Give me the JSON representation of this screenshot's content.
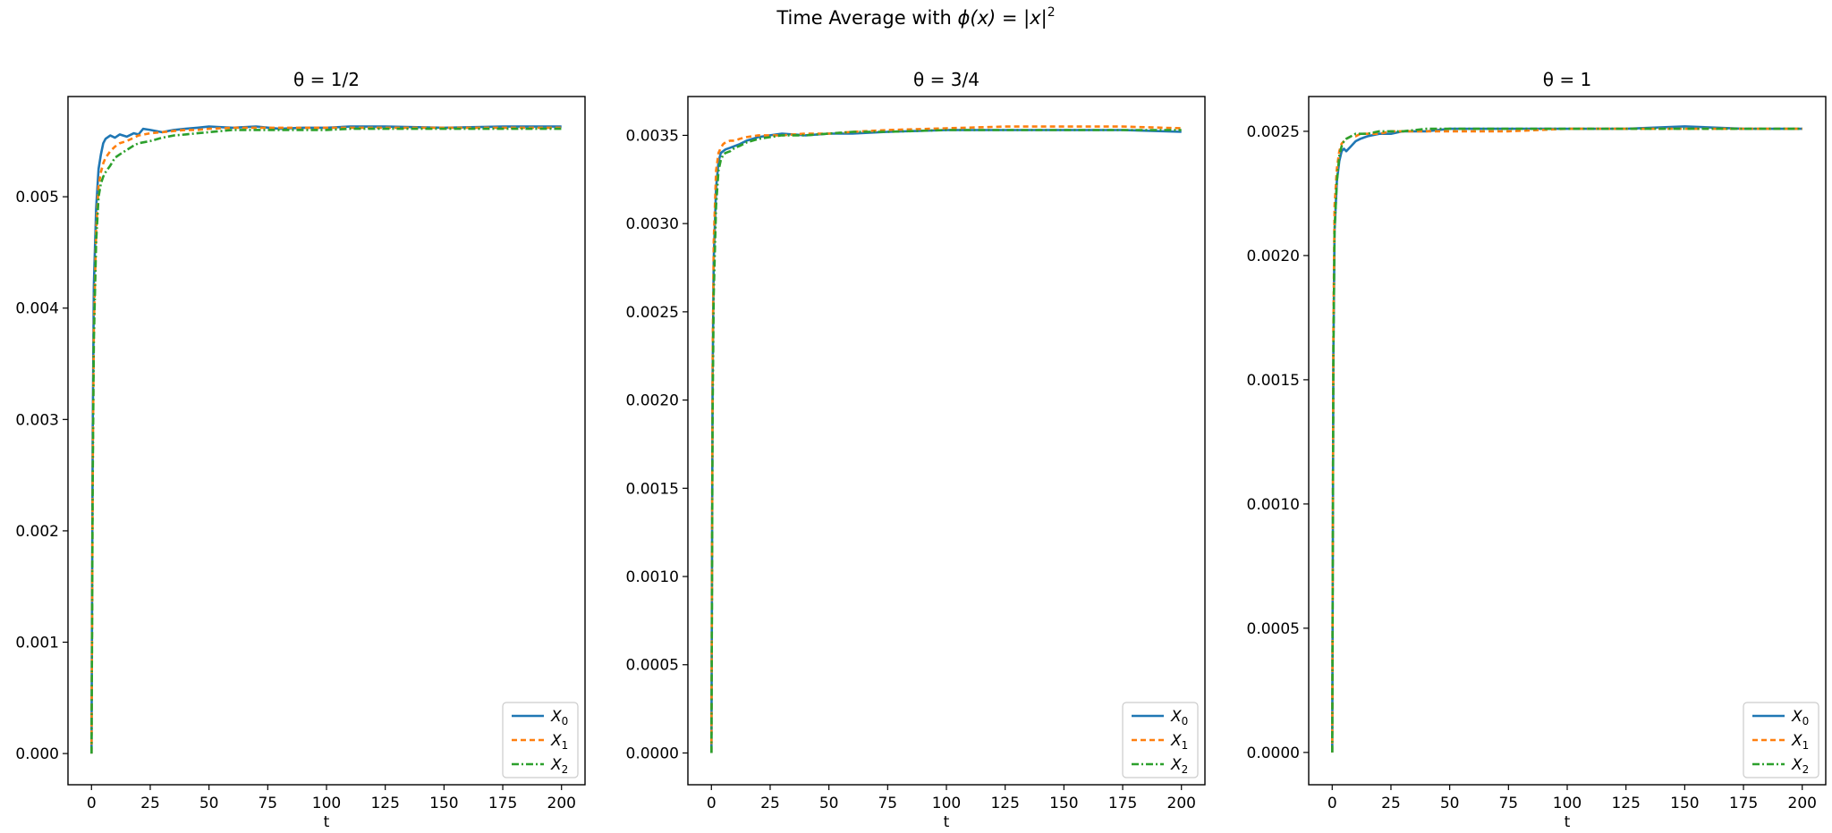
{
  "figure": {
    "suptitle_prefix": "Time Average with ",
    "suptitle_math": "ϕ(x) = |x|",
    "suptitle_exp": "2"
  },
  "chart_data": [
    {
      "type": "line",
      "title": "θ = 1/2",
      "xlabel": "t",
      "ylabel": "",
      "xlim": [
        -10,
        210
      ],
      "ylim": [
        -0.00028,
        0.0059
      ],
      "xticks": [
        0,
        25,
        50,
        75,
        100,
        125,
        150,
        175,
        200
      ],
      "yticks": [
        0.0,
        0.001,
        0.002,
        0.003,
        0.004,
        0.005
      ],
      "ytick_labels": [
        "0.000",
        "0.001",
        "0.002",
        "0.003",
        "0.004",
        "0.005"
      ],
      "grid": false,
      "legend_position": "lower right",
      "series": [
        {
          "name": "X",
          "sub": "0",
          "color": "#1f77b4",
          "dash": "",
          "x": [
            0,
            0.5,
            1,
            2,
            3,
            4,
            5,
            6,
            8,
            10,
            12,
            15,
            18,
            20,
            22,
            25,
            30,
            35,
            40,
            45,
            50,
            60,
            70,
            80,
            90,
            100,
            110,
            125,
            150,
            175,
            200
          ],
          "y": [
            0,
            0.0028,
            0.0042,
            0.0049,
            0.00525,
            0.00538,
            0.00548,
            0.00552,
            0.00555,
            0.00553,
            0.00556,
            0.00554,
            0.00557,
            0.00556,
            0.00561,
            0.0056,
            0.00558,
            0.0056,
            0.00561,
            0.00562,
            0.00563,
            0.00562,
            0.00563,
            0.00561,
            0.00562,
            0.00562,
            0.00563,
            0.00563,
            0.00562,
            0.00563,
            0.00563
          ]
        },
        {
          "name": "X",
          "sub": "1",
          "color": "#ff7f0e",
          "dash": "6,4",
          "x": [
            0,
            0.5,
            1,
            2,
            3,
            4,
            5,
            6,
            8,
            10,
            12,
            15,
            18,
            20,
            25,
            30,
            35,
            40,
            45,
            50,
            60,
            70,
            80,
            90,
            100,
            110,
            125,
            150,
            175,
            200
          ],
          "y": [
            0,
            0.0025,
            0.0038,
            0.0047,
            0.0051,
            0.00522,
            0.0053,
            0.00535,
            0.00541,
            0.00545,
            0.00548,
            0.0055,
            0.00553,
            0.00555,
            0.00557,
            0.00558,
            0.00559,
            0.0056,
            0.0056,
            0.00561,
            0.00562,
            0.00562,
            0.00562,
            0.00562,
            0.00562,
            0.00562,
            0.00562,
            0.00562,
            0.00562,
            0.00562
          ]
        },
        {
          "name": "X",
          "sub": "2",
          "color": "#2ca02c",
          "dash": "8,3,2,3",
          "x": [
            0,
            0.5,
            1,
            2,
            3,
            4,
            5,
            6,
            8,
            10,
            12,
            15,
            18,
            20,
            25,
            30,
            35,
            40,
            45,
            50,
            60,
            70,
            80,
            90,
            100,
            110,
            125,
            150,
            175,
            200
          ],
          "y": [
            0,
            0.0024,
            0.0037,
            0.0046,
            0.005,
            0.00512,
            0.00518,
            0.00522,
            0.00528,
            0.00535,
            0.00538,
            0.00542,
            0.00546,
            0.00548,
            0.0055,
            0.00553,
            0.00555,
            0.00556,
            0.00557,
            0.00558,
            0.0056,
            0.0056,
            0.0056,
            0.0056,
            0.0056,
            0.00561,
            0.00561,
            0.00561,
            0.00561,
            0.00561
          ]
        }
      ]
    },
    {
      "type": "line",
      "title": "θ = 3/4",
      "xlabel": "t",
      "ylabel": "",
      "xlim": [
        -10,
        210
      ],
      "ylim": [
        -0.00018,
        0.00372
      ],
      "xticks": [
        0,
        25,
        50,
        75,
        100,
        125,
        150,
        175,
        200
      ],
      "yticks": [
        0.0,
        0.0005,
        0.001,
        0.0015,
        0.002,
        0.0025,
        0.003,
        0.0035
      ],
      "ytick_labels": [
        "0.0000",
        "0.0005",
        "0.0010",
        "0.0015",
        "0.0020",
        "0.0025",
        "0.0030",
        "0.0035"
      ],
      "grid": false,
      "legend_position": "lower right",
      "series": [
        {
          "name": "X",
          "sub": "0",
          "color": "#1f77b4",
          "dash": "",
          "x": [
            0,
            0.5,
            1,
            2,
            3,
            4,
            5,
            6,
            8,
            10,
            12,
            15,
            20,
            25,
            30,
            40,
            50,
            60,
            75,
            100,
            125,
            150,
            175,
            200
          ],
          "y": [
            0,
            0.0021,
            0.0028,
            0.0032,
            0.00335,
            0.0034,
            0.00341,
            0.00342,
            0.00343,
            0.00344,
            0.00345,
            0.00347,
            0.00349,
            0.0035,
            0.00351,
            0.0035,
            0.00351,
            0.00351,
            0.00352,
            0.00353,
            0.00353,
            0.00353,
            0.00353,
            0.00352
          ]
        },
        {
          "name": "X",
          "sub": "1",
          "color": "#ff7f0e",
          "dash": "6,4",
          "x": [
            0,
            0.5,
            1,
            2,
            3,
            4,
            5,
            6,
            8,
            10,
            12,
            15,
            20,
            25,
            30,
            40,
            50,
            60,
            75,
            100,
            125,
            150,
            175,
            200
          ],
          "y": [
            0,
            0.0022,
            0.0029,
            0.0033,
            0.0034,
            0.00343,
            0.00345,
            0.00346,
            0.00347,
            0.00347,
            0.00348,
            0.00349,
            0.0035,
            0.0035,
            0.0035,
            0.00351,
            0.00351,
            0.00352,
            0.00353,
            0.00354,
            0.00355,
            0.00355,
            0.00355,
            0.00354
          ]
        },
        {
          "name": "X",
          "sub": "2",
          "color": "#2ca02c",
          "dash": "8,3,2,3",
          "x": [
            0,
            0.5,
            1,
            2,
            3,
            4,
            5,
            6,
            8,
            10,
            12,
            15,
            20,
            25,
            30,
            40,
            50,
            60,
            75,
            100,
            125,
            150,
            175,
            200
          ],
          "y": [
            0,
            0.0019,
            0.0026,
            0.0031,
            0.0033,
            0.00336,
            0.00339,
            0.0034,
            0.00341,
            0.00343,
            0.00344,
            0.00346,
            0.00348,
            0.00349,
            0.0035,
            0.0035,
            0.00351,
            0.00352,
            0.00352,
            0.00353,
            0.00353,
            0.00353,
            0.00353,
            0.00353
          ]
        }
      ]
    },
    {
      "type": "line",
      "title": "θ = 1",
      "xlabel": "t",
      "ylabel": "",
      "xlim": [
        -10,
        210
      ],
      "ylim": [
        -0.00013,
        0.00264
      ],
      "xticks": [
        0,
        25,
        50,
        75,
        100,
        125,
        150,
        175,
        200
      ],
      "yticks": [
        0.0,
        0.0005,
        0.001,
        0.0015,
        0.002,
        0.0025
      ],
      "ytick_labels": [
        "0.0000",
        "0.0005",
        "0.0010",
        "0.0015",
        "0.0020",
        "0.0025"
      ],
      "grid": false,
      "legend_position": "lower right",
      "series": [
        {
          "name": "X",
          "sub": "0",
          "color": "#1f77b4",
          "dash": "",
          "x": [
            0,
            0.5,
            1,
            2,
            3,
            4,
            5,
            6,
            8,
            10,
            12,
            15,
            20,
            25,
            30,
            40,
            50,
            60,
            75,
            100,
            125,
            150,
            175,
            200
          ],
          "y": [
            0,
            0.0016,
            0.0021,
            0.0023,
            0.00238,
            0.00242,
            0.00243,
            0.00242,
            0.00244,
            0.00246,
            0.00247,
            0.00248,
            0.00249,
            0.00249,
            0.0025,
            0.0025,
            0.00251,
            0.00251,
            0.00251,
            0.00251,
            0.00251,
            0.00252,
            0.00251,
            0.00251
          ]
        },
        {
          "name": "X",
          "sub": "1",
          "color": "#ff7f0e",
          "dash": "6,4",
          "x": [
            0,
            0.5,
            1,
            2,
            3,
            4,
            5,
            6,
            8,
            10,
            12,
            15,
            20,
            25,
            30,
            40,
            50,
            60,
            75,
            100,
            125,
            150,
            175,
            200
          ],
          "y": [
            0,
            0.0017,
            0.0022,
            0.00235,
            0.00242,
            0.00245,
            0.00246,
            0.00247,
            0.00248,
            0.00248,
            0.00249,
            0.00249,
            0.00249,
            0.0025,
            0.0025,
            0.0025,
            0.0025,
            0.0025,
            0.0025,
            0.00251,
            0.00251,
            0.00251,
            0.00251,
            0.00251
          ]
        },
        {
          "name": "X",
          "sub": "2",
          "color": "#2ca02c",
          "dash": "8,3,2,3",
          "x": [
            0,
            0.5,
            1,
            2,
            3,
            4,
            5,
            6,
            8,
            10,
            12,
            15,
            20,
            25,
            30,
            40,
            50,
            60,
            75,
            100,
            125,
            150,
            175,
            200
          ],
          "y": [
            0,
            0.0016,
            0.0021,
            0.0023,
            0.0024,
            0.00244,
            0.00246,
            0.00247,
            0.00248,
            0.00249,
            0.00249,
            0.00249,
            0.0025,
            0.0025,
            0.0025,
            0.00251,
            0.00251,
            0.00251,
            0.00251,
            0.00251,
            0.00251,
            0.00251,
            0.00251,
            0.00251
          ]
        }
      ]
    }
  ]
}
